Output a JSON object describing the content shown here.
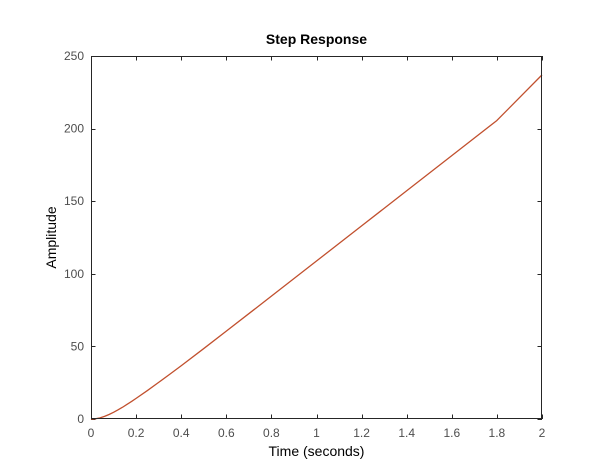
{
  "chart_data": {
    "type": "line",
    "title": "Step Response",
    "xlabel": "Time (seconds)",
    "ylabel": "Amplitude",
    "xlim": [
      0,
      2
    ],
    "ylim": [
      0,
      250
    ],
    "xticks": [
      0,
      0.2,
      0.4,
      0.6,
      0.8,
      1,
      1.2,
      1.4,
      1.6,
      1.8,
      2
    ],
    "yticks": [
      0,
      50,
      100,
      150,
      200,
      250
    ],
    "grid": false,
    "series": [
      {
        "color": "#c1502e",
        "x": [
          0,
          0.02,
          0.04,
          0.06,
          0.08,
          0.1,
          0.12,
          0.14,
          0.16,
          0.18,
          0.2,
          0.25,
          0.3,
          0.35,
          0.4,
          0.5,
          0.6,
          0.8,
          1.0,
          1.2,
          1.4,
          1.6,
          1.8,
          2.0
        ],
        "y": [
          0,
          0.2,
          0.8,
          1.8,
          3.1,
          4.6,
          6.3,
          8.1,
          10.1,
          12.1,
          14.2,
          19.6,
          25.2,
          30.9,
          36.7,
          48.5,
          60.5,
          84.6,
          108.8,
          133.0,
          157.2,
          181.4,
          205.6,
          237
        ]
      }
    ],
    "axes_colors": {
      "axis": "#262626",
      "tick_label": "#4d4d4d",
      "background": "#ffffff"
    }
  }
}
